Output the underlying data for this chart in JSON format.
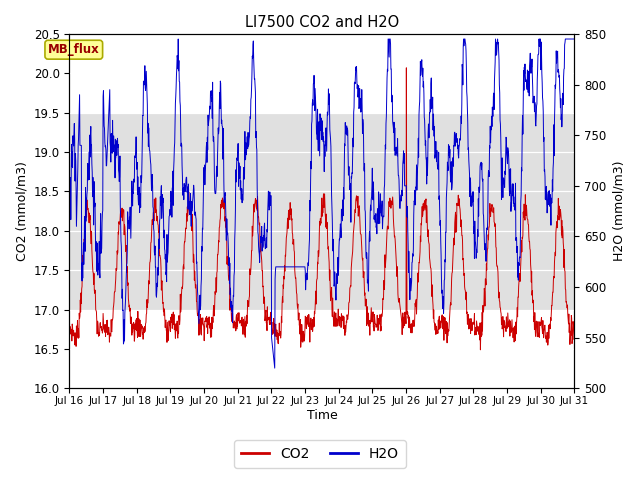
{
  "title": "LI7500 CO2 and H2O",
  "xlabel": "Time",
  "ylabel_left": "CO2 (mmol/m3)",
  "ylabel_right": "H2O (mmol/m3)",
  "ylim_left": [
    16.0,
    20.5
  ],
  "ylim_right": [
    500,
    850
  ],
  "yticks_left": [
    16.0,
    16.5,
    17.0,
    17.5,
    18.0,
    18.5,
    19.0,
    19.5,
    20.0,
    20.5
  ],
  "yticks_right": [
    500,
    550,
    600,
    650,
    700,
    750,
    800,
    850
  ],
  "xtick_labels": [
    "Jul 16",
    "Jul 17",
    "Jul 18",
    "Jul 19",
    "Jul 20",
    "Jul 21",
    "Jul 22",
    "Jul 23",
    "Jul 24",
    "Jul 25",
    "Jul 26",
    "Jul 27",
    "Jul 28",
    "Jul 29",
    "Jul 30",
    "Jul 31"
  ],
  "xlim": [
    0,
    15
  ],
  "legend_labels": [
    "CO2",
    "H2O"
  ],
  "co2_color": "#cc0000",
  "h2o_color": "#0000cc",
  "annotation_text": "MB_flux",
  "shaded_ymin": 17.0,
  "shaded_ymax": 19.5,
  "shaded_color": "#e0e0e0"
}
